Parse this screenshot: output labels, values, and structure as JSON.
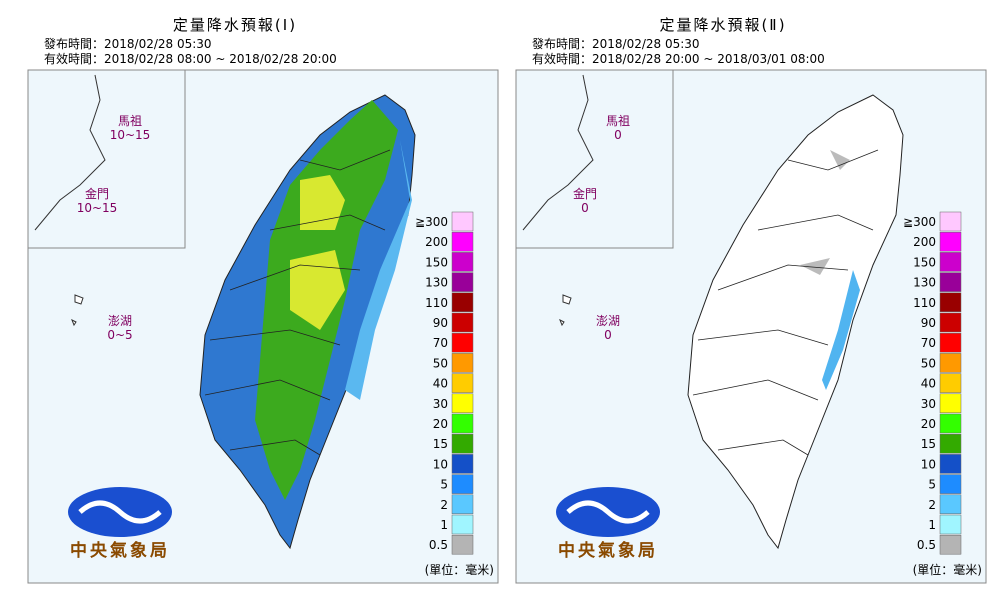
{
  "panels": [
    {
      "title": "定量降水預報(Ⅰ)",
      "issued": "發布時間：2018/02/28 05:30",
      "valid": "有效時間：2018/02/28 08:00 ~ 2018/02/28 20:00",
      "islands": [
        {
          "name": "馬祖",
          "amount": "10~15"
        },
        {
          "name": "金門",
          "amount": "10~15"
        },
        {
          "name": "澎湖",
          "amount": "0~5"
        }
      ],
      "unit": "(單位：毫米)",
      "logo": "中央氣象局"
    },
    {
      "title": "定量降水預報(Ⅱ)",
      "issued": "發布時間：2018/02/28 05:30",
      "valid": "有效時間：2018/02/28 20:00 ~ 2018/03/01 08:00",
      "islands": [
        {
          "name": "馬祖",
          "amount": "0"
        },
        {
          "name": "金門",
          "amount": "0"
        },
        {
          "name": "澎湖",
          "amount": "0"
        }
      ],
      "unit": "(單位：毫米)",
      "logo": "中央氣象局"
    }
  ],
  "legend": {
    "labels": [
      "≧300",
      "200",
      "150",
      "130",
      "110",
      "90",
      "70",
      "50",
      "40",
      "30",
      "20",
      "15",
      "10",
      "5",
      "2",
      "1",
      "0.5"
    ],
    "colors": [
      "#ffc8ff",
      "#ff00ff",
      "#cc00cc",
      "#990099",
      "#990000",
      "#cc0000",
      "#ff0000",
      "#ff9900",
      "#ffcc00",
      "#ffff00",
      "#33ff00",
      "#33aa00",
      "#1450c8",
      "#1e8cff",
      "#5ac8ff",
      "#a0f5ff",
      "#b4b4b4"
    ]
  }
}
